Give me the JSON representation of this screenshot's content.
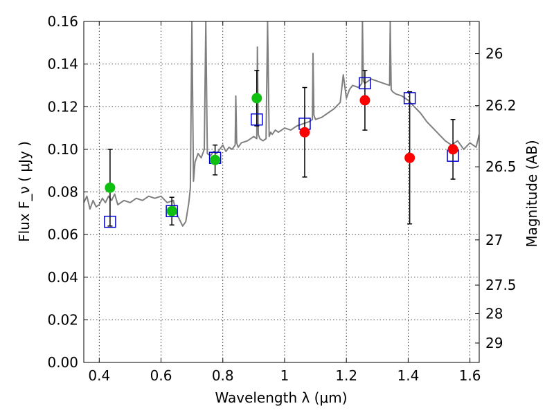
{
  "chart_data": {
    "type": "scatter",
    "xlabel": "Wavelength  λ (μm)",
    "ylabel": "Flux  F_ν  ( μJy )",
    "ylabel_right": "Magnitude (AB)",
    "xlim": [
      0.35,
      1.63
    ],
    "ylim": [
      0.0,
      0.16
    ],
    "grid": true,
    "x_ticks": [
      0.4,
      0.6,
      0.8,
      1.0,
      1.2,
      1.4,
      1.6
    ],
    "x_tick_labels": [
      "0.4",
      "0.6",
      "0.8",
      "1",
      "1.2",
      "1.4",
      "1.6"
    ],
    "y_ticks": [
      0.0,
      0.02,
      0.04,
      0.06,
      0.08,
      0.1,
      0.12,
      0.14,
      0.16
    ],
    "y_tick_labels": [
      "0.00",
      "0.02",
      "0.04",
      "0.06",
      "0.08",
      "0.10",
      "0.12",
      "0.14",
      "0.16"
    ],
    "right_ticks": [
      {
        "flux": 0.1449,
        "label": "26"
      },
      {
        "flux": 0.1205,
        "label": "26.2"
      },
      {
        "flux": 0.0918,
        "label": "26.5"
      },
      {
        "flux": 0.0575,
        "label": "27"
      },
      {
        "flux": 0.0363,
        "label": "27.5"
      },
      {
        "flux": 0.0229,
        "label": "28"
      },
      {
        "flux": 0.0091,
        "label": "29"
      }
    ],
    "model_spectrum": {
      "color": "#7f7f7f",
      "x": [
        0.35,
        0.36,
        0.37,
        0.38,
        0.39,
        0.4,
        0.41,
        0.42,
        0.43,
        0.44,
        0.45,
        0.46,
        0.48,
        0.5,
        0.52,
        0.54,
        0.56,
        0.58,
        0.6,
        0.62,
        0.64,
        0.65,
        0.66,
        0.67,
        0.68,
        0.69,
        0.695,
        0.7,
        0.705,
        0.71,
        0.72,
        0.73,
        0.74,
        0.745,
        0.75,
        0.76,
        0.77,
        0.78,
        0.79,
        0.8,
        0.81,
        0.82,
        0.83,
        0.84,
        0.842,
        0.845,
        0.85,
        0.86,
        0.88,
        0.9,
        0.91,
        0.912,
        0.915,
        0.92,
        0.93,
        0.94,
        0.945,
        0.95,
        0.955,
        0.96,
        0.97,
        0.98,
        1.0,
        1.02,
        1.04,
        1.06,
        1.08,
        1.09,
        1.092,
        1.095,
        1.1,
        1.12,
        1.14,
        1.16,
        1.18,
        1.19,
        1.2,
        1.21,
        1.22,
        1.24,
        1.25,
        1.252,
        1.255,
        1.26,
        1.28,
        1.3,
        1.32,
        1.34,
        1.342,
        1.345,
        1.35,
        1.36,
        1.38,
        1.4,
        1.42,
        1.44,
        1.46,
        1.48,
        1.5,
        1.52,
        1.54,
        1.56,
        1.58,
        1.6,
        1.62,
        1.63
      ],
      "y": [
        0.075,
        0.078,
        0.072,
        0.076,
        0.073,
        0.074,
        0.077,
        0.075,
        0.078,
        0.076,
        0.079,
        0.074,
        0.076,
        0.075,
        0.077,
        0.076,
        0.078,
        0.077,
        0.078,
        0.075,
        0.076,
        0.07,
        0.067,
        0.064,
        0.066,
        0.075,
        0.082,
        0.16,
        0.085,
        0.094,
        0.098,
        0.096,
        0.1,
        0.16,
        0.098,
        0.097,
        0.099,
        0.098,
        0.1,
        0.102,
        0.099,
        0.101,
        0.1,
        0.102,
        0.125,
        0.103,
        0.101,
        0.103,
        0.104,
        0.106,
        0.105,
        0.148,
        0.107,
        0.105,
        0.104,
        0.105,
        0.16,
        0.106,
        0.108,
        0.107,
        0.109,
        0.108,
        0.11,
        0.109,
        0.111,
        0.112,
        0.113,
        0.114,
        0.145,
        0.116,
        0.114,
        0.115,
        0.117,
        0.119,
        0.122,
        0.135,
        0.124,
        0.128,
        0.13,
        0.129,
        0.131,
        0.16,
        0.132,
        0.131,
        0.133,
        0.132,
        0.131,
        0.13,
        0.16,
        0.128,
        0.127,
        0.126,
        0.125,
        0.123,
        0.12,
        0.117,
        0.113,
        0.11,
        0.107,
        0.104,
        0.102,
        0.104,
        0.1,
        0.103,
        0.101,
        0.107
      ]
    },
    "series": [
      {
        "marker": "square",
        "color": "#0000cc",
        "x": [
          0.435,
          0.635,
          0.775,
          0.91,
          1.065,
          1.26,
          1.405,
          1.545
        ],
        "y": [
          0.066,
          0.071,
          0.096,
          0.114,
          0.112,
          0.131,
          0.124,
          0.097
        ]
      },
      {
        "marker": "circle",
        "color": "#10c010",
        "x": [
          0.435,
          0.635,
          0.775,
          0.91
        ],
        "y": [
          0.082,
          0.071,
          0.095,
          0.124
        ],
        "yerr": [
          0.018,
          0.0065,
          0.007,
          0.013
        ]
      },
      {
        "marker": "circle",
        "color": "#ff0000",
        "x": [
          1.065,
          1.26,
          1.405,
          1.545
        ],
        "y": [
          0.108,
          0.123,
          0.096,
          0.1
        ],
        "yerr": [
          0.021,
          0.014,
          0.031,
          0.014
        ]
      }
    ]
  }
}
